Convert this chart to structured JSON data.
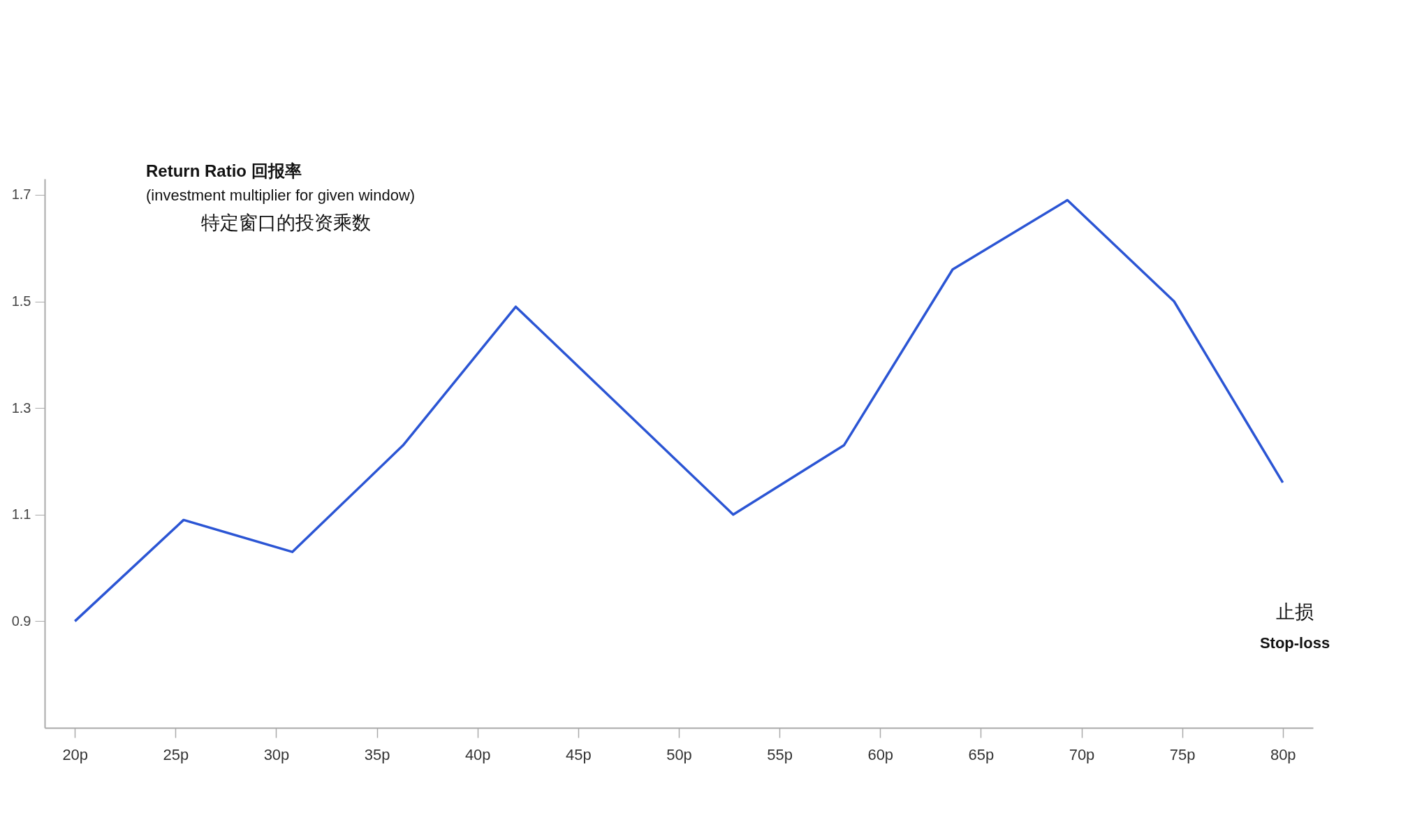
{
  "chart_data": {
    "type": "line",
    "title": "Return Ratio  回报率",
    "subtitle": "(investment multiplier for given window)",
    "xlabel": "Stop-loss",
    "annotations": [
      "特定窗口的投资乘数",
      "止损"
    ],
    "series": [
      {
        "color": "#2b55d4",
        "x": [
          20,
          25.4,
          30.8,
          36.3,
          41.9,
          52.7,
          58.2,
          63.6,
          69.3,
          74.6,
          80
        ],
        "values": [
          0.9,
          1.09,
          1.03,
          1.23,
          1.49,
          1.1,
          1.23,
          1.56,
          1.69,
          1.5,
          1.16
        ]
      }
    ],
    "xlim": [
      18.5,
      81.5
    ],
    "xticks": [
      {
        "value": 20,
        "label": "20p"
      },
      {
        "value": 25,
        "label": "25p"
      },
      {
        "value": 30,
        "label": "30p"
      },
      {
        "value": 35,
        "label": "35p"
      },
      {
        "value": 40,
        "label": "40p"
      },
      {
        "value": 45,
        "label": "45p"
      },
      {
        "value": 50,
        "label": "50p"
      },
      {
        "value": 55,
        "label": "55p"
      },
      {
        "value": 60,
        "label": "60p"
      },
      {
        "value": 65,
        "label": "65p"
      },
      {
        "value": 70,
        "label": "70p"
      },
      {
        "value": 75,
        "label": "75p"
      },
      {
        "value": 80,
        "label": "80p"
      }
    ],
    "ylim": [
      0.7,
      1.73
    ],
    "yticks": [
      0.9,
      1.1,
      1.3,
      1.5,
      1.7
    ],
    "grid": false,
    "marker": "none",
    "line_style": "solid"
  }
}
